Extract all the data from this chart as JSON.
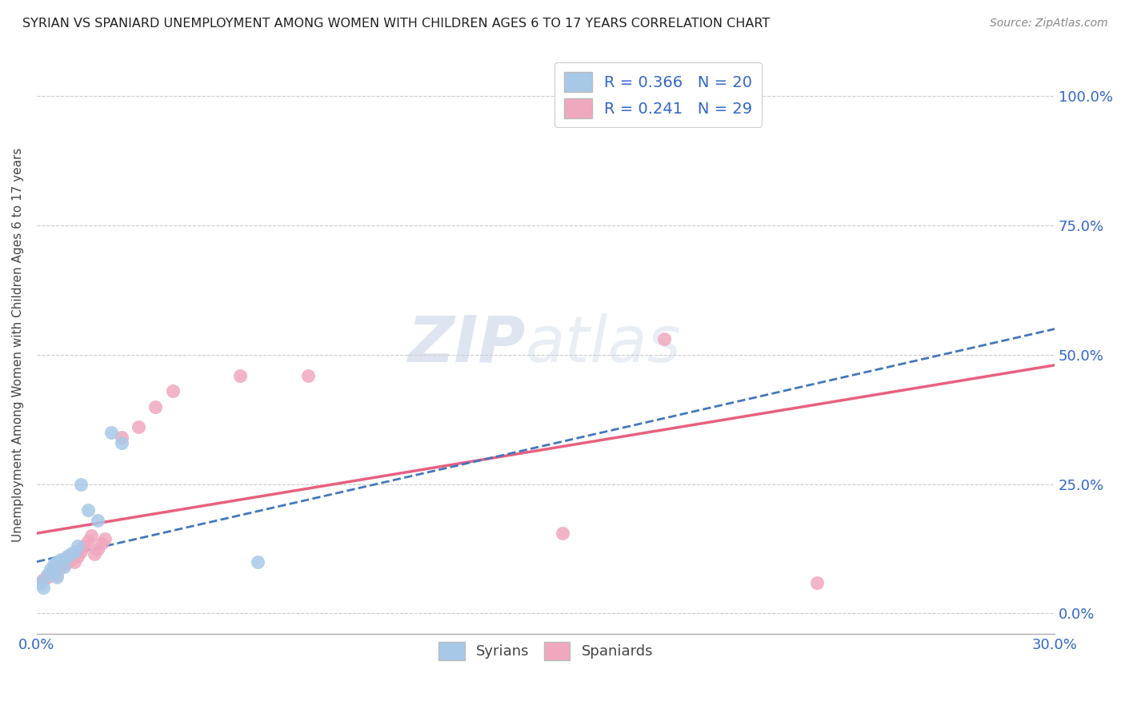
{
  "title": "SYRIAN VS SPANIARD UNEMPLOYMENT AMONG WOMEN WITH CHILDREN AGES 6 TO 17 YEARS CORRELATION CHART",
  "source": "Source: ZipAtlas.com",
  "ylabel": "Unemployment Among Women with Children Ages 6 to 17 years",
  "ylabel_ticks": [
    "0.0%",
    "25.0%",
    "50.0%",
    "75.0%",
    "100.0%"
  ],
  "ylabel_vals": [
    0.0,
    0.25,
    0.5,
    0.75,
    1.0
  ],
  "xmin": 0.0,
  "xmax": 0.3,
  "ymin": -0.04,
  "ymax": 1.08,
  "syrian_color": "#a8c8e8",
  "spaniard_color": "#f0a8be",
  "syrian_line_color": "#4477bb",
  "spaniard_line_color": "#e86080",
  "background_color": "#ffffff",
  "grid_color": "#cccccc",
  "syrians_x": [
    0.001,
    0.002,
    0.003,
    0.004,
    0.005,
    0.005,
    0.006,
    0.006,
    0.007,
    0.008,
    0.009,
    0.01,
    0.011,
    0.012,
    0.013,
    0.015,
    0.018,
    0.022,
    0.025,
    0.065
  ],
  "syrians_y": [
    0.06,
    0.05,
    0.075,
    0.085,
    0.08,
    0.095,
    0.07,
    0.1,
    0.105,
    0.09,
    0.11,
    0.115,
    0.12,
    0.13,
    0.25,
    0.2,
    0.18,
    0.35,
    0.33,
    0.1
  ],
  "spaniards_x": [
    0.001,
    0.002,
    0.003,
    0.004,
    0.005,
    0.006,
    0.007,
    0.008,
    0.009,
    0.01,
    0.011,
    0.012,
    0.013,
    0.014,
    0.015,
    0.016,
    0.017,
    0.018,
    0.019,
    0.02,
    0.025,
    0.03,
    0.035,
    0.04,
    0.06,
    0.08,
    0.155,
    0.185,
    0.23
  ],
  "spaniards_y": [
    0.06,
    0.065,
    0.07,
    0.08,
    0.085,
    0.075,
    0.09,
    0.095,
    0.1,
    0.105,
    0.1,
    0.11,
    0.12,
    0.13,
    0.14,
    0.15,
    0.115,
    0.125,
    0.135,
    0.145,
    0.34,
    0.36,
    0.4,
    0.43,
    0.46,
    0.46,
    0.155,
    0.53,
    0.06
  ],
  "watermark_zip": "ZIP",
  "watermark_atlas": "atlas"
}
